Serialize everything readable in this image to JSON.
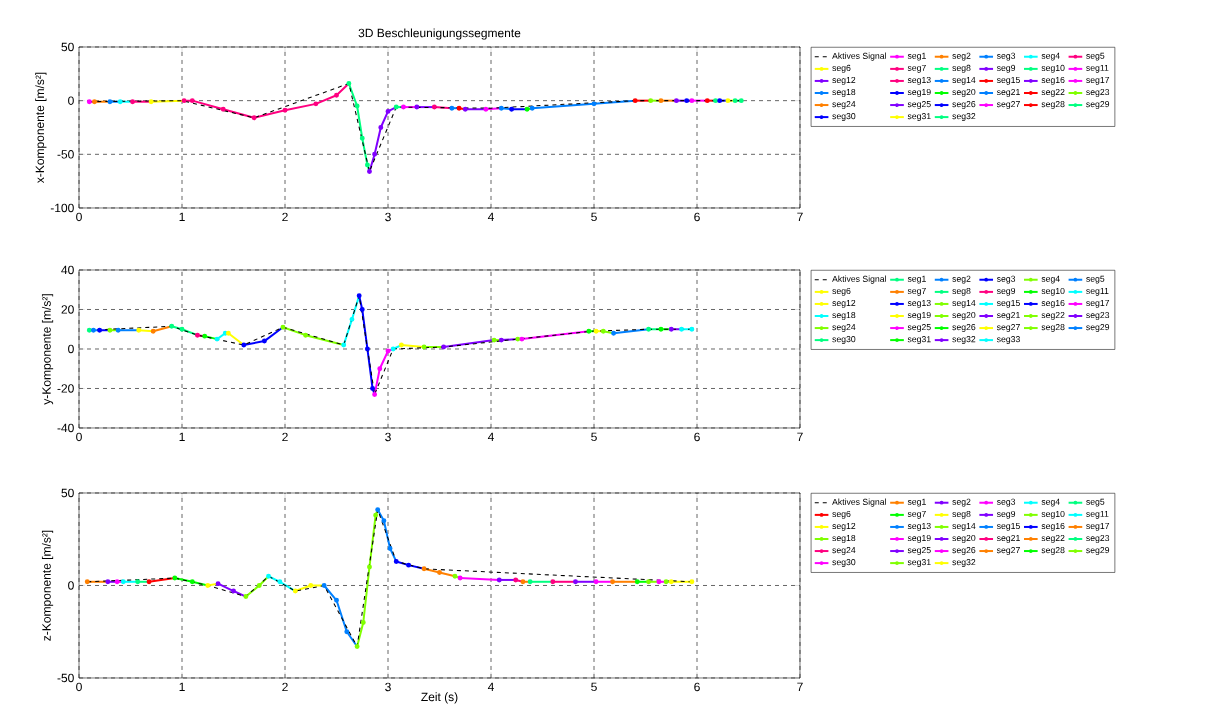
{
  "chart_data": [
    {
      "type": "line",
      "title": "3D Beschleunigungssegmente",
      "ylabel": "x-Komponente [m/s²]",
      "xlim": [
        0,
        7
      ],
      "ylim": [
        -100,
        50
      ],
      "xticks": [
        0,
        1,
        2,
        3,
        4,
        5,
        6,
        7
      ],
      "yticks": [
        -100,
        -50,
        0,
        50
      ],
      "grid": true,
      "legend": "right",
      "marker": "circle",
      "line_style": "solid",
      "series": [
        {
          "name": "Aktives Signal",
          "color": "#000000",
          "marker": "none",
          "line_style": "dashed",
          "x": [
            0.1,
            1.0,
            1.7,
            2.62,
            2.82,
            3.08,
            4.0,
            5.4,
            6.43
          ],
          "values": [
            -1,
            0,
            -16,
            16,
            -66,
            -6,
            -7,
            0,
            0
          ]
        },
        {
          "name": "seg1",
          "color": "#ff00ff",
          "x": [
            0.1,
            0.15
          ],
          "values": [
            -1,
            -1
          ]
        },
        {
          "name": "seg2",
          "color": "#ff8000",
          "x": [
            0.15,
            0.3
          ],
          "values": [
            -1,
            -1
          ]
        },
        {
          "name": "seg3",
          "color": "#0080ff",
          "x": [
            0.3,
            0.4
          ],
          "values": [
            -1,
            -1
          ]
        },
        {
          "name": "seg4",
          "color": "#00ffff",
          "x": [
            0.4,
            0.52
          ],
          "values": [
            -1,
            -1
          ]
        },
        {
          "name": "seg5",
          "color": "#ff0080",
          "x": [
            0.52,
            0.7
          ],
          "values": [
            -1,
            -1
          ]
        },
        {
          "name": "seg6",
          "color": "#ffff00",
          "x": [
            0.7,
            1.02
          ],
          "values": [
            -1,
            0
          ]
        },
        {
          "name": "seg7",
          "color": "#ff0080",
          "x": [
            1.02,
            1.1,
            1.4,
            1.7,
            2.0,
            2.3,
            2.5,
            2.62
          ],
          "values": [
            0,
            0,
            -8,
            -16,
            -9,
            -3,
            5,
            16
          ]
        },
        {
          "name": "seg8",
          "color": "#00ff80",
          "x": [
            2.62,
            2.7,
            2.75,
            2.8,
            2.82
          ],
          "values": [
            16,
            -5,
            -35,
            -60,
            -66
          ]
        },
        {
          "name": "seg9",
          "color": "#8000ff",
          "x": [
            2.82,
            2.87,
            2.93,
            3.0,
            3.08
          ],
          "values": [
            -66,
            -50,
            -25,
            -10,
            -6
          ]
        },
        {
          "name": "seg10",
          "color": "#00ff80",
          "x": [
            3.08,
            3.15
          ],
          "values": [
            -6,
            -6
          ]
        },
        {
          "name": "seg11",
          "color": "#ff00ff",
          "x": [
            3.15,
            3.28
          ],
          "values": [
            -6,
            -6
          ]
        },
        {
          "name": "seg12",
          "color": "#8000ff",
          "x": [
            3.28,
            3.45
          ],
          "values": [
            -6,
            -6
          ]
        },
        {
          "name": "seg13",
          "color": "#ff0080",
          "x": [
            3.45,
            3.62
          ],
          "values": [
            -6,
            -7
          ]
        },
        {
          "name": "seg14",
          "color": "#0080ff",
          "x": [
            3.62,
            3.69
          ],
          "values": [
            -7,
            -7
          ]
        },
        {
          "name": "seg15",
          "color": "#ff0000",
          "x": [
            3.69,
            3.75
          ],
          "values": [
            -7,
            -8
          ]
        },
        {
          "name": "seg16",
          "color": "#8000ff",
          "x": [
            3.75,
            3.95
          ],
          "values": [
            -8,
            -8
          ]
        },
        {
          "name": "seg17",
          "color": "#ff00ff",
          "x": [
            3.95,
            4.1
          ],
          "values": [
            -8,
            -7
          ]
        },
        {
          "name": "seg18",
          "color": "#0080ff",
          "x": [
            4.1,
            4.2
          ],
          "values": [
            -7,
            -8
          ]
        },
        {
          "name": "seg19",
          "color": "#0000ff",
          "x": [
            4.2,
            4.35
          ],
          "values": [
            -8,
            -8
          ]
        },
        {
          "name": "seg20",
          "color": "#00ff00",
          "x": [
            4.35,
            4.4
          ],
          "values": [
            -8,
            -7
          ]
        },
        {
          "name": "seg21",
          "color": "#0080ff",
          "x": [
            4.4,
            5.0,
            5.4
          ],
          "values": [
            -7,
            -3,
            0
          ]
        },
        {
          "name": "seg22",
          "color": "#ff0000",
          "x": [
            5.4,
            5.55
          ],
          "values": [
            0,
            0
          ]
        },
        {
          "name": "seg23",
          "color": "#80ff00",
          "x": [
            5.55,
            5.65
          ],
          "values": [
            0,
            0
          ]
        },
        {
          "name": "seg24",
          "color": "#ff8000",
          "x": [
            5.65,
            5.8
          ],
          "values": [
            0,
            0
          ]
        },
        {
          "name": "seg25",
          "color": "#8000ff",
          "x": [
            5.8,
            5.9
          ],
          "values": [
            0,
            0
          ]
        },
        {
          "name": "seg26",
          "color": "#0000ff",
          "x": [
            5.9,
            5.95
          ],
          "values": [
            0,
            0
          ]
        },
        {
          "name": "seg27",
          "color": "#ff00ff",
          "x": [
            5.95,
            6.1
          ],
          "values": [
            0,
            0
          ]
        },
        {
          "name": "seg28",
          "color": "#ff0000",
          "x": [
            6.1,
            6.18
          ],
          "values": [
            0,
            0
          ]
        },
        {
          "name": "seg29",
          "color": "#00ff80",
          "x": [
            6.18,
            6.22
          ],
          "values": [
            0,
            0
          ]
        },
        {
          "name": "seg30",
          "color": "#0000ff",
          "x": [
            6.22,
            6.3
          ],
          "values": [
            0,
            0
          ]
        },
        {
          "name": "seg31",
          "color": "#ffff00",
          "x": [
            6.3,
            6.37
          ],
          "values": [
            0,
            0
          ]
        },
        {
          "name": "seg32",
          "color": "#00ff80",
          "x": [
            6.37,
            6.43
          ],
          "values": [
            0,
            0
          ]
        }
      ]
    },
    {
      "type": "line",
      "ylabel": "y-Komponente [m/s²]",
      "xlim": [
        0,
        7
      ],
      "ylim": [
        -40,
        40
      ],
      "xticks": [
        0,
        1,
        2,
        3,
        4,
        5,
        6,
        7
      ],
      "yticks": [
        -40,
        -20,
        0,
        20,
        40
      ],
      "grid": true,
      "legend": "right",
      "marker": "circle",
      "line_style": "solid",
      "series": [
        {
          "name": "Aktives Signal",
          "color": "#000000",
          "marker": "none",
          "line_style": "dashed",
          "x": [
            0.1,
            0.9,
            1.15,
            1.6,
            1.98,
            2.57,
            2.72,
            2.87,
            3.05,
            3.54,
            4.98,
            5.53,
            5.95
          ],
          "values": [
            9.5,
            11.5,
            7,
            2,
            11,
            2,
            27,
            -23,
            0,
            1,
            9,
            10,
            10
          ]
        },
        {
          "name": "seg1",
          "color": "#00ff80",
          "x": [
            0.1,
            0.14
          ],
          "values": [
            9.5,
            9.5
          ]
        },
        {
          "name": "seg2",
          "color": "#0080ff",
          "x": [
            0.14,
            0.2
          ],
          "values": [
            9.5,
            9.5
          ]
        },
        {
          "name": "seg3",
          "color": "#0000ff",
          "x": [
            0.2,
            0.3
          ],
          "values": [
            9.5,
            9.5
          ]
        },
        {
          "name": "seg4",
          "color": "#80ff00",
          "x": [
            0.3,
            0.38
          ],
          "values": [
            9.5,
            9.5
          ]
        },
        {
          "name": "seg5",
          "color": "#0080ff",
          "x": [
            0.38,
            0.58
          ],
          "values": [
            9.5,
            9.5
          ]
        },
        {
          "name": "seg6",
          "color": "#ffff00",
          "x": [
            0.58,
            0.72
          ],
          "values": [
            9.5,
            9
          ]
        },
        {
          "name": "seg7",
          "color": "#ff8000",
          "x": [
            0.72,
            0.9
          ],
          "values": [
            9,
            11.5
          ]
        },
        {
          "name": "seg8",
          "color": "#00ff80",
          "x": [
            0.9,
            1.0,
            1.15
          ],
          "values": [
            11.5,
            10,
            7
          ]
        },
        {
          "name": "seg9",
          "color": "#ff0080",
          "x": [
            1.15,
            1.22
          ],
          "values": [
            7,
            6.5
          ]
        },
        {
          "name": "seg10",
          "color": "#00ff00",
          "x": [
            1.22,
            1.34
          ],
          "values": [
            6.5,
            5
          ]
        },
        {
          "name": "seg11",
          "color": "#00ffff",
          "x": [
            1.34,
            1.42,
            1.45
          ],
          "values": [
            5,
            8,
            8
          ]
        },
        {
          "name": "seg12",
          "color": "#ffff00",
          "x": [
            1.45,
            1.6
          ],
          "values": [
            8,
            2
          ]
        },
        {
          "name": "seg13",
          "color": "#0000ff",
          "x": [
            1.6,
            1.8,
            1.98
          ],
          "values": [
            2,
            4,
            11
          ]
        },
        {
          "name": "seg14",
          "color": "#80ff00",
          "x": [
            1.98,
            2.2,
            2.57
          ],
          "values": [
            11,
            7,
            2
          ]
        },
        {
          "name": "seg15",
          "color": "#00ffff",
          "x": [
            2.57,
            2.65,
            2.72
          ],
          "values": [
            2,
            15,
            27
          ]
        },
        {
          "name": "seg16",
          "color": "#0000ff",
          "x": [
            2.72,
            2.75,
            2.8,
            2.85,
            2.87
          ],
          "values": [
            27,
            20,
            0,
            -20,
            -23
          ]
        },
        {
          "name": "seg17",
          "color": "#ff00ff",
          "x": [
            2.87,
            2.92,
            3.0,
            3.05
          ],
          "values": [
            -23,
            -10,
            -1,
            0
          ]
        },
        {
          "name": "seg18",
          "color": "#00ffff",
          "x": [
            3.05,
            3.13
          ],
          "values": [
            0,
            2
          ]
        },
        {
          "name": "seg19",
          "color": "#ffff00",
          "x": [
            3.13,
            3.35
          ],
          "values": [
            2,
            1
          ]
        },
        {
          "name": "seg20",
          "color": "#80ff00",
          "x": [
            3.35,
            3.54
          ],
          "values": [
            1,
            1
          ]
        },
        {
          "name": "seg21",
          "color": "#8000ff",
          "x": [
            3.54,
            4.03
          ],
          "values": [
            1,
            4.5
          ]
        },
        {
          "name": "seg22",
          "color": "#80ff00",
          "x": [
            4.03,
            4.1
          ],
          "values": [
            4.5,
            4.5
          ]
        },
        {
          "name": "seg23",
          "color": "#8000ff",
          "x": [
            4.1,
            4.26
          ],
          "values": [
            4.5,
            5
          ]
        },
        {
          "name": "seg24",
          "color": "#80ff00",
          "x": [
            4.26,
            4.3
          ],
          "values": [
            5,
            5
          ]
        },
        {
          "name": "seg25",
          "color": "#ff00ff",
          "x": [
            4.3,
            4.95
          ],
          "values": [
            5,
            9
          ]
        },
        {
          "name": "seg26",
          "color": "#00ff00",
          "x": [
            4.95,
            5.02
          ],
          "values": [
            9,
            9
          ]
        },
        {
          "name": "seg27",
          "color": "#ffff00",
          "x": [
            5.02,
            5.09
          ],
          "values": [
            9,
            9
          ]
        },
        {
          "name": "seg28",
          "color": "#80ff00",
          "x": [
            5.09,
            5.19
          ],
          "values": [
            9,
            8
          ]
        },
        {
          "name": "seg29",
          "color": "#0080ff",
          "x": [
            5.19,
            5.53
          ],
          "values": [
            8,
            10
          ]
        },
        {
          "name": "seg30",
          "color": "#00ff80",
          "x": [
            5.53,
            5.65
          ],
          "values": [
            10,
            10
          ]
        },
        {
          "name": "seg31",
          "color": "#00ff00",
          "x": [
            5.65,
            5.75
          ],
          "values": [
            10,
            10
          ]
        },
        {
          "name": "seg32",
          "color": "#8000ff",
          "x": [
            5.75,
            5.85
          ],
          "values": [
            10,
            10
          ]
        },
        {
          "name": "seg33",
          "color": "#00ffff",
          "x": [
            5.85,
            5.95
          ],
          "values": [
            10,
            10
          ]
        }
      ]
    },
    {
      "type": "line",
      "xlabel": "Zeit (s)",
      "ylabel": "z-Komponente [m/s²]",
      "xlim": [
        0,
        7
      ],
      "ylim": [
        -50,
        50
      ],
      "xticks": [
        0,
        1,
        2,
        3,
        4,
        5,
        6,
        7
      ],
      "yticks": [
        -50,
        0,
        50
      ],
      "grid": true,
      "legend": "right",
      "marker": "circle",
      "line_style": "solid",
      "series": [
        {
          "name": "Aktives Signal",
          "color": "#000000",
          "marker": "none",
          "line_style": "dashed",
          "x": [
            0.08,
            0.93,
            1.25,
            1.62,
            1.84,
            2.1,
            2.38,
            2.7,
            2.9,
            3.08,
            3.35,
            5.95
          ],
          "values": [
            2,
            4,
            0,
            -6,
            5,
            -3,
            0,
            -33,
            41,
            13,
            9,
            2
          ]
        },
        {
          "name": "seg1",
          "color": "#ff8000",
          "x": [
            0.08,
            0.28
          ],
          "values": [
            2,
            2
          ]
        },
        {
          "name": "seg2",
          "color": "#8000ff",
          "x": [
            0.28,
            0.37
          ],
          "values": [
            2,
            2
          ]
        },
        {
          "name": "seg3",
          "color": "#ff00ff",
          "x": [
            0.37,
            0.43
          ],
          "values": [
            2,
            2
          ]
        },
        {
          "name": "seg4",
          "color": "#00ffff",
          "x": [
            0.43,
            0.57
          ],
          "values": [
            2,
            2
          ]
        },
        {
          "name": "seg5",
          "color": "#00ff80",
          "x": [
            0.57,
            0.68
          ],
          "values": [
            2,
            2
          ]
        },
        {
          "name": "seg6",
          "color": "#ff0000",
          "x": [
            0.68,
            0.93
          ],
          "values": [
            2,
            4
          ]
        },
        {
          "name": "seg7",
          "color": "#00ff00",
          "x": [
            0.93,
            1.1,
            1.25
          ],
          "values": [
            4,
            2,
            0
          ]
        },
        {
          "name": "seg8",
          "color": "#ffff00",
          "x": [
            1.25,
            1.35
          ],
          "values": [
            0,
            1
          ]
        },
        {
          "name": "seg9",
          "color": "#8000ff",
          "x": [
            1.35,
            1.5,
            1.62
          ],
          "values": [
            1,
            -3,
            -6
          ]
        },
        {
          "name": "seg10",
          "color": "#80ff00",
          "x": [
            1.62,
            1.75,
            1.84
          ],
          "values": [
            -6,
            0,
            5
          ]
        },
        {
          "name": "seg11",
          "color": "#00ffff",
          "x": [
            1.84,
            1.95,
            2.1
          ],
          "values": [
            5,
            2,
            -3
          ]
        },
        {
          "name": "seg12",
          "color": "#ffff00",
          "x": [
            2.1,
            2.25,
            2.38
          ],
          "values": [
            -3,
            0,
            0
          ]
        },
        {
          "name": "seg13",
          "color": "#0080ff",
          "x": [
            2.38,
            2.5,
            2.6,
            2.7
          ],
          "values": [
            0,
            -8,
            -25,
            -33
          ]
        },
        {
          "name": "seg14",
          "color": "#80ff00",
          "x": [
            2.7,
            2.76,
            2.82,
            2.88,
            2.9
          ],
          "values": [
            -33,
            -20,
            10,
            38,
            41
          ]
        },
        {
          "name": "seg15",
          "color": "#0080ff",
          "x": [
            2.9,
            2.96,
            3.02,
            3.08
          ],
          "values": [
            41,
            35,
            20,
            13
          ]
        },
        {
          "name": "seg16",
          "color": "#0000ff",
          "x": [
            3.08,
            3.2,
            3.35
          ],
          "values": [
            13,
            11,
            9
          ]
        },
        {
          "name": "seg17",
          "color": "#ff8000",
          "x": [
            3.35,
            3.5,
            3.65
          ],
          "values": [
            9,
            7,
            5
          ]
        },
        {
          "name": "seg18",
          "color": "#80ff00",
          "x": [
            3.65,
            3.7
          ],
          "values": [
            5,
            4
          ]
        },
        {
          "name": "seg19",
          "color": "#ff00ff",
          "x": [
            3.7,
            4.08
          ],
          "values": [
            4,
            3
          ]
        },
        {
          "name": "seg20",
          "color": "#8000ff",
          "x": [
            4.08,
            4.24
          ],
          "values": [
            3,
            3
          ]
        },
        {
          "name": "seg21",
          "color": "#ff0080",
          "x": [
            4.24,
            4.31
          ],
          "values": [
            3,
            2
          ]
        },
        {
          "name": "seg22",
          "color": "#ff8000",
          "x": [
            4.31,
            4.38
          ],
          "values": [
            2,
            2
          ]
        },
        {
          "name": "seg23",
          "color": "#00ff80",
          "x": [
            4.38,
            4.6
          ],
          "values": [
            2,
            2
          ]
        },
        {
          "name": "seg24",
          "color": "#ff0080",
          "x": [
            4.6,
            4.82
          ],
          "values": [
            2,
            2
          ]
        },
        {
          "name": "seg25",
          "color": "#8000ff",
          "x": [
            4.82,
            5.02
          ],
          "values": [
            2,
            2
          ]
        },
        {
          "name": "seg26",
          "color": "#ff00ff",
          "x": [
            5.02,
            5.18
          ],
          "values": [
            2,
            2
          ]
        },
        {
          "name": "seg27",
          "color": "#ff8000",
          "x": [
            5.18,
            5.42
          ],
          "values": [
            2,
            2
          ]
        },
        {
          "name": "seg28",
          "color": "#00ff00",
          "x": [
            5.42,
            5.53
          ],
          "values": [
            2,
            2
          ]
        },
        {
          "name": "seg29",
          "color": "#80ff00",
          "x": [
            5.53,
            5.63
          ],
          "values": [
            2,
            2
          ]
        },
        {
          "name": "seg30",
          "color": "#ff00ff",
          "x": [
            5.63,
            5.7
          ],
          "values": [
            2,
            2
          ]
        },
        {
          "name": "seg31",
          "color": "#80ff00",
          "x": [
            5.7,
            5.75
          ],
          "values": [
            2,
            2
          ]
        },
        {
          "name": "seg32",
          "color": "#ffff00",
          "x": [
            5.75,
            5.95
          ],
          "values": [
            2,
            2
          ]
        }
      ]
    }
  ]
}
